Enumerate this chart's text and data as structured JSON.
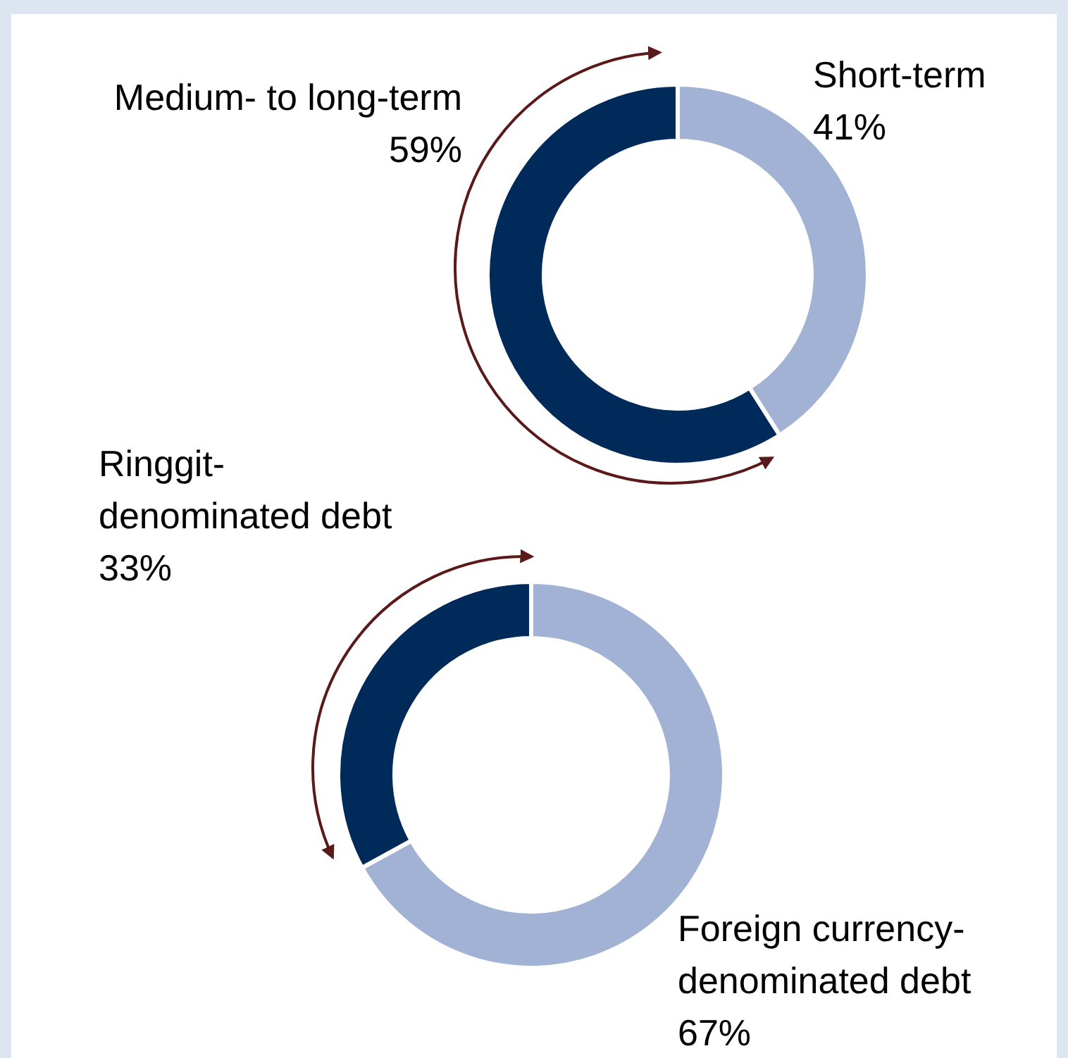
{
  "chart_data": [
    {
      "type": "donut",
      "categories": [
        "Short-term",
        "Medium- to long-term"
      ],
      "values": [
        41,
        59
      ],
      "value_labels": [
        "41%",
        "59%"
      ],
      "colors": [
        "#a2b2d4",
        "#002a5a"
      ],
      "data_labels": true
    },
    {
      "type": "donut",
      "categories": [
        "Foreign currency-denominated debt",
        "Ringgit-denominated debt"
      ],
      "values": [
        67,
        33
      ],
      "value_labels": [
        "67%",
        "33%"
      ],
      "colors": [
        "#a2b2d4",
        "#002a5a"
      ],
      "data_labels": true
    }
  ]
}
